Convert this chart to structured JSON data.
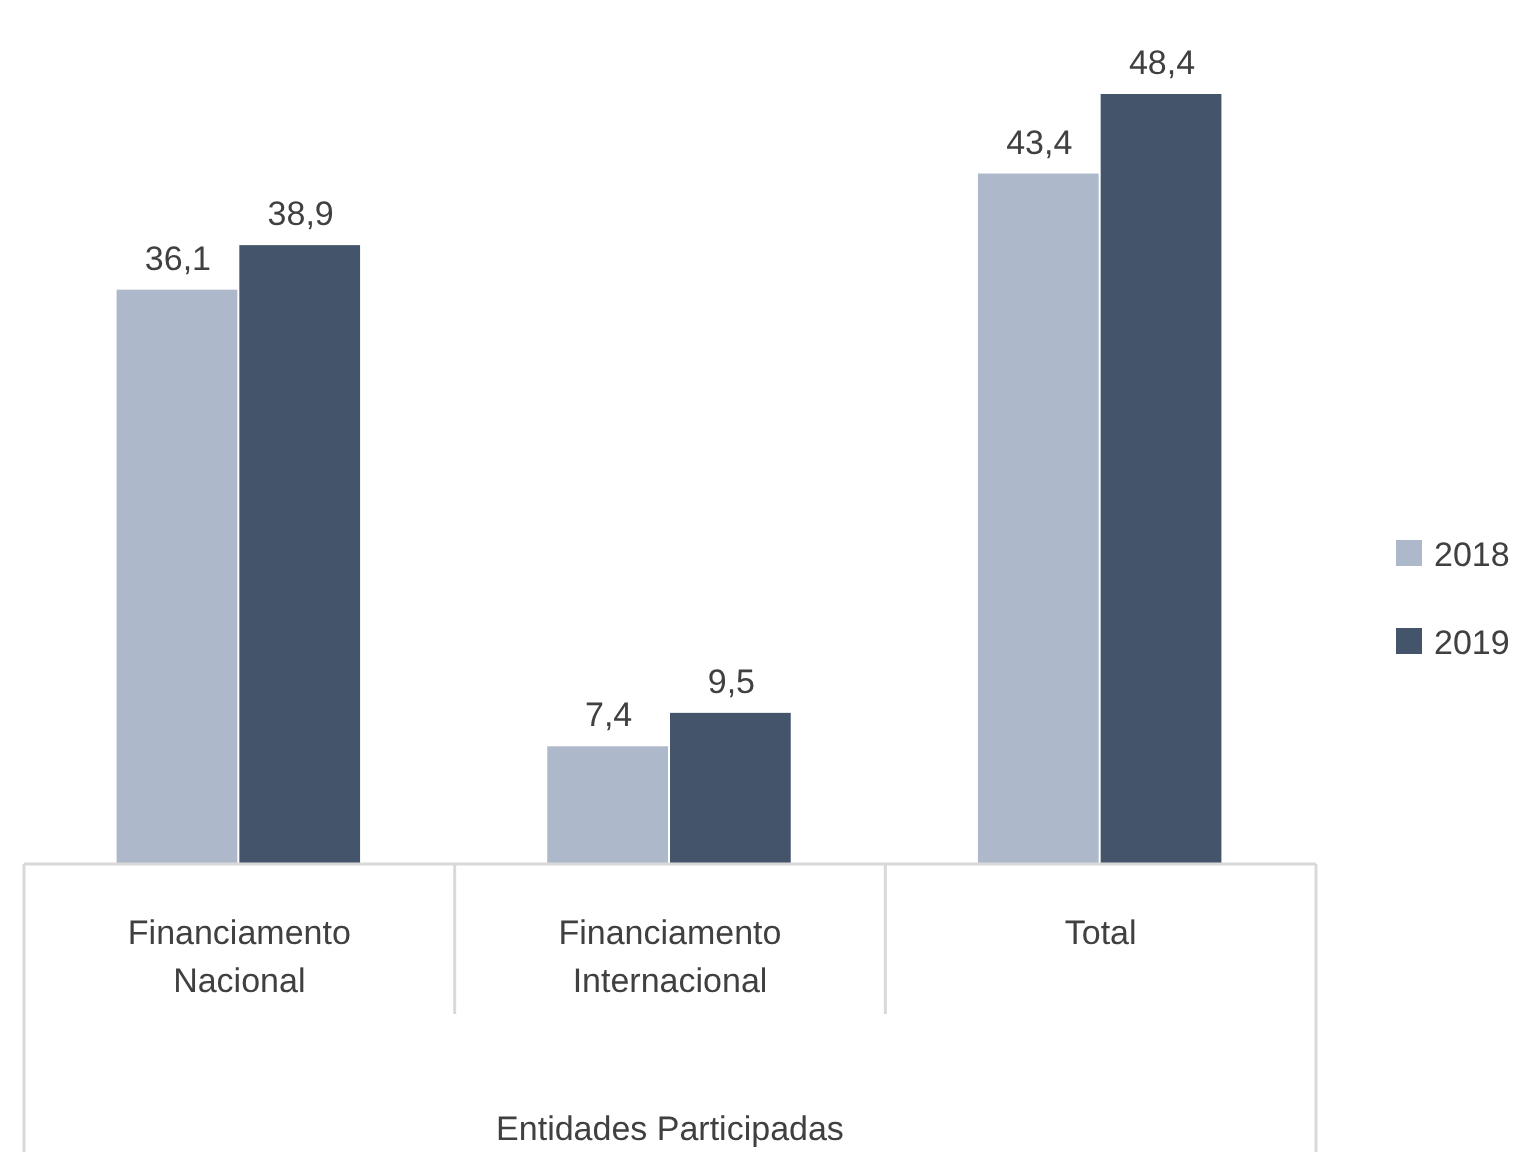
{
  "chart_data": {
    "type": "bar",
    "xlabel": "Entidades Participadas",
    "categories": [
      "Financiamento Nacional",
      "Financiamento Internacional",
      "Total"
    ],
    "series": [
      {
        "name": "2018",
        "color": "#adb9ca",
        "values": [
          36.1,
          7.4,
          43.4
        ],
        "value_labels": [
          "36,1",
          "7,4",
          "43,4"
        ]
      },
      {
        "name": "2019",
        "color": "#44546a",
        "values": [
          38.9,
          9.5,
          48.4
        ],
        "value_labels": [
          "38,9",
          "9,5",
          "48,4"
        ]
      }
    ],
    "relative": false,
    "legend": "right"
  }
}
